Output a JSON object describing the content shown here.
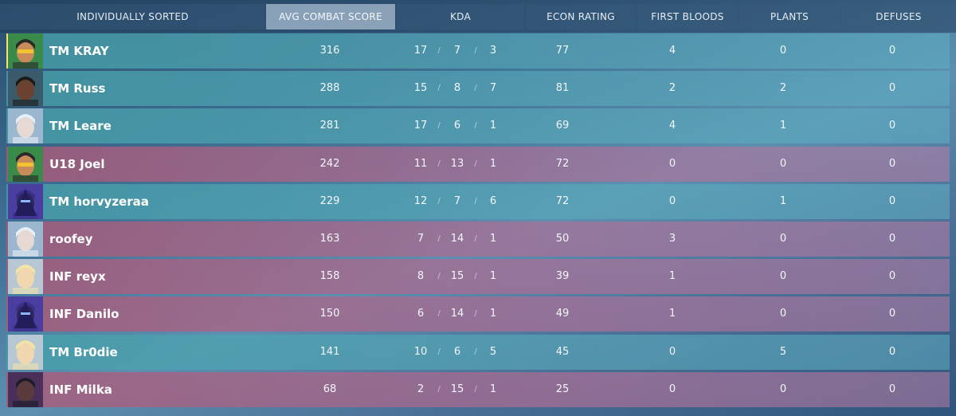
{
  "header": {
    "sort_label": "INDIVIDUALLY SORTED",
    "acs": "AVG COMBAT SCORE",
    "kda": "KDA",
    "econ": "ECON RATING",
    "first_bloods": "FIRST BLOODS",
    "plants": "PLANTS",
    "defuses": "DEFUSES"
  },
  "colors": {
    "team_a": "#4aa3ad",
    "team_b": "#b25a83",
    "highlight": "#f3e36a"
  },
  "players": [
    {
      "name": "TM KRAY",
      "team": "a",
      "agent": "killjoy",
      "acs": "316",
      "k": "17",
      "d": "7",
      "a": "3",
      "econ": "77",
      "fb": "4",
      "plants": "0",
      "defuses": "0"
    },
    {
      "name": "TM Russ",
      "team": "a",
      "agent": "dark-agent",
      "acs": "288",
      "k": "15",
      "d": "8",
      "a": "7",
      "econ": "81",
      "fb": "2",
      "plants": "2",
      "defuses": "0"
    },
    {
      "name": "TM Leare",
      "team": "a",
      "agent": "jett",
      "acs": "281",
      "k": "17",
      "d": "6",
      "a": "1",
      "econ": "69",
      "fb": "4",
      "plants": "1",
      "defuses": "0"
    },
    {
      "name": "U18 Joel",
      "team": "b",
      "agent": "killjoy",
      "acs": "242",
      "k": "11",
      "d": "13",
      "a": "1",
      "econ": "72",
      "fb": "0",
      "plants": "0",
      "defuses": "0"
    },
    {
      "name": "TM horvyzeraa",
      "team": "a",
      "agent": "omen",
      "acs": "229",
      "k": "12",
      "d": "7",
      "a": "6",
      "econ": "72",
      "fb": "0",
      "plants": "1",
      "defuses": "0"
    },
    {
      "name": "roofey",
      "team": "b",
      "agent": "jett",
      "acs": "163",
      "k": "7",
      "d": "14",
      "a": "1",
      "econ": "50",
      "fb": "3",
      "plants": "0",
      "defuses": "0"
    },
    {
      "name": "INF reyx",
      "team": "b",
      "agent": "blonde-agent",
      "acs": "158",
      "k": "8",
      "d": "15",
      "a": "1",
      "econ": "39",
      "fb": "1",
      "plants": "0",
      "defuses": "0"
    },
    {
      "name": "INF Danilo",
      "team": "b",
      "agent": "omen",
      "acs": "150",
      "k": "6",
      "d": "14",
      "a": "1",
      "econ": "49",
      "fb": "1",
      "plants": "0",
      "defuses": "0"
    },
    {
      "name": "TM Br0die",
      "team": "a",
      "agent": "blonde-agent",
      "acs": "141",
      "k": "10",
      "d": "6",
      "a": "5",
      "econ": "45",
      "fb": "0",
      "plants": "5",
      "defuses": "0"
    },
    {
      "name": "INF Milka",
      "team": "b",
      "agent": "dark-hooded-agent",
      "acs": "68",
      "k": "2",
      "d": "15",
      "a": "1",
      "econ": "25",
      "fb": "0",
      "plants": "0",
      "defuses": "0"
    }
  ]
}
